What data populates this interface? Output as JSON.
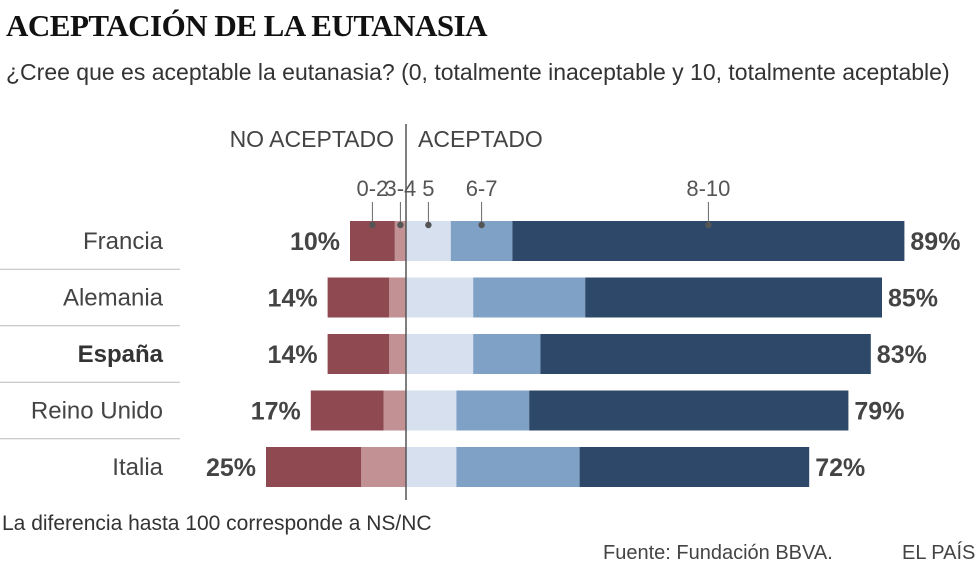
{
  "title": "ACEPTACIÓN DE LA EUTANASIA",
  "subtitle": "¿Cree que es aceptable la eutanasia? (0, totalmente inaceptable y 10, totalmente aceptable)",
  "note": "La diferencia hasta 100 corresponde a NS/NC",
  "source": "Fuente: Fundación BBVA.",
  "brand": "EL PAÍS",
  "colors": {
    "seg_0_2": "#8e4a50",
    "seg_3_4": "#c29194",
    "seg_5": "#d6e0ef",
    "seg_6_7": "#7fa1c6",
    "seg_8_10": "#2e4869",
    "divider": "#bbbbbb",
    "axis": "#555555"
  },
  "chart_data": {
    "type": "bar",
    "orientation": "horizontal",
    "stacked": true,
    "diverging": true,
    "unit": "%",
    "group_labels": {
      "negative": "NO ACEPTADO",
      "positive": "ACEPTADO"
    },
    "categories": [
      "Francia",
      "Alemania",
      "España",
      "Reino Unido",
      "Italia"
    ],
    "highlight": "España",
    "negative_series": [
      {
        "name": "0-2",
        "values": [
          8,
          11,
          11,
          13,
          17
        ]
      },
      {
        "name": "3-4",
        "values": [
          2,
          3,
          3,
          4,
          8
        ]
      }
    ],
    "positive_series": [
      {
        "name": "5",
        "values": [
          8,
          12,
          12,
          9,
          9
        ]
      },
      {
        "name": "6-7",
        "values": [
          11,
          20,
          12,
          13,
          22
        ]
      },
      {
        "name": "8-10",
        "values": [
          70,
          53,
          59,
          57,
          41
        ]
      }
    ],
    "negative_totals": [
      10,
      14,
      14,
      17,
      25
    ],
    "positive_totals": [
      89,
      85,
      83,
      79,
      72
    ]
  }
}
